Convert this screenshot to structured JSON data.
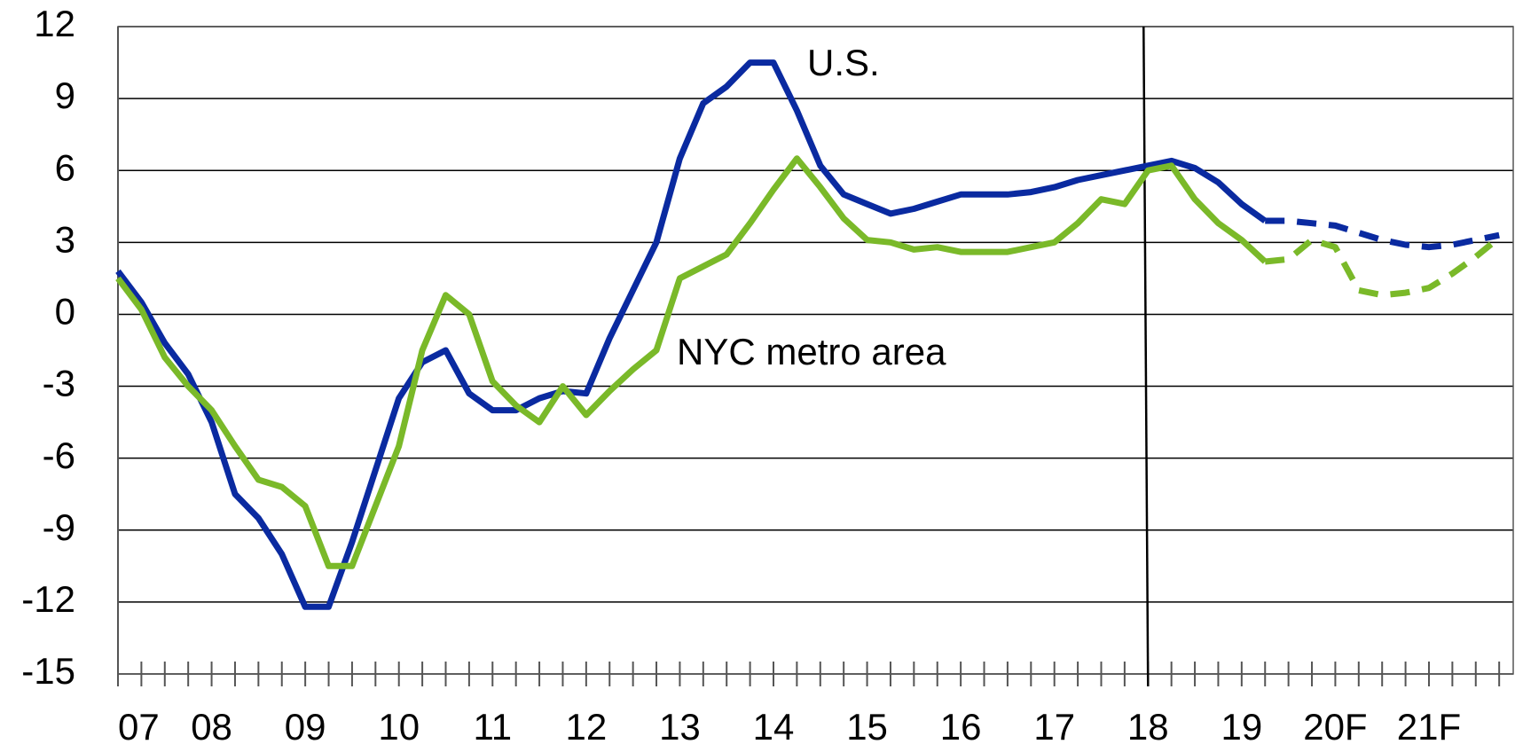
{
  "chart_data": {
    "type": "line",
    "categories": [
      "07",
      null,
      null,
      null,
      "08",
      null,
      null,
      null,
      "09",
      null,
      null,
      null,
      "10",
      null,
      null,
      null,
      "11",
      null,
      null,
      null,
      "12",
      null,
      null,
      null,
      "13",
      null,
      null,
      null,
      "14",
      null,
      null,
      null,
      "15",
      null,
      null,
      null,
      "16",
      null,
      null,
      null,
      "17",
      null,
      null,
      null,
      "18",
      null,
      null,
      null,
      "19",
      null,
      null,
      null,
      "20F",
      null,
      null,
      null,
      "21F",
      null,
      null,
      null
    ],
    "series": [
      {
        "name": "U.S.",
        "color": "#0a2aa0",
        "dash_from": 49,
        "values": [
          1.8,
          0.5,
          -1.2,
          -2.5,
          -4.5,
          -7.5,
          -8.5,
          -10,
          -12.2,
          -12.2,
          -9.5,
          -6.5,
          -3.5,
          -2,
          -1.5,
          -3.3,
          -4,
          -4,
          -3.5,
          -3.2,
          -3.3,
          -1,
          1,
          3,
          6.5,
          8.8,
          9.5,
          10.5,
          10.5,
          8.5,
          6.2,
          5,
          4.6,
          4.2,
          4.4,
          4.7,
          5,
          5,
          5,
          5.1,
          5.3,
          5.6,
          5.8,
          6,
          6.2,
          6.4,
          6.1,
          5.5,
          4.6,
          3.9,
          3.9,
          3.8,
          3.7,
          3.4,
          3.1,
          2.9,
          2.8,
          2.9,
          3.1,
          3.3
        ]
      },
      {
        "name": "NYC metro area",
        "color": "#7ab929",
        "dash_from": 49,
        "values": [
          1.5,
          0.2,
          -1.8,
          -3,
          -4,
          -5.5,
          -6.9,
          -7.2,
          -8,
          -10.5,
          -10.5,
          -8,
          -5.5,
          -1.5,
          0.8,
          0,
          -2.8,
          -3.8,
          -4.5,
          -3,
          -4.2,
          -3.2,
          -2.3,
          -1.5,
          1.5,
          2,
          2.5,
          3.8,
          5.2,
          6.5,
          5.3,
          4,
          3.1,
          3,
          2.7,
          2.8,
          2.6,
          2.6,
          2.6,
          2.8,
          3,
          3.8,
          4.8,
          4.6,
          6,
          6.2,
          4.8,
          3.8,
          3.1,
          2.2,
          2.3,
          3.1,
          2.8,
          1,
          0.8,
          0.9,
          1.1,
          1.7,
          2.4,
          3.2
        ]
      }
    ],
    "ylim": [
      -15,
      12
    ],
    "yticks": [
      -15,
      -12,
      -9,
      -6,
      -3,
      0,
      3,
      6,
      9,
      12
    ],
    "grid": true,
    "divider": 44
  }
}
